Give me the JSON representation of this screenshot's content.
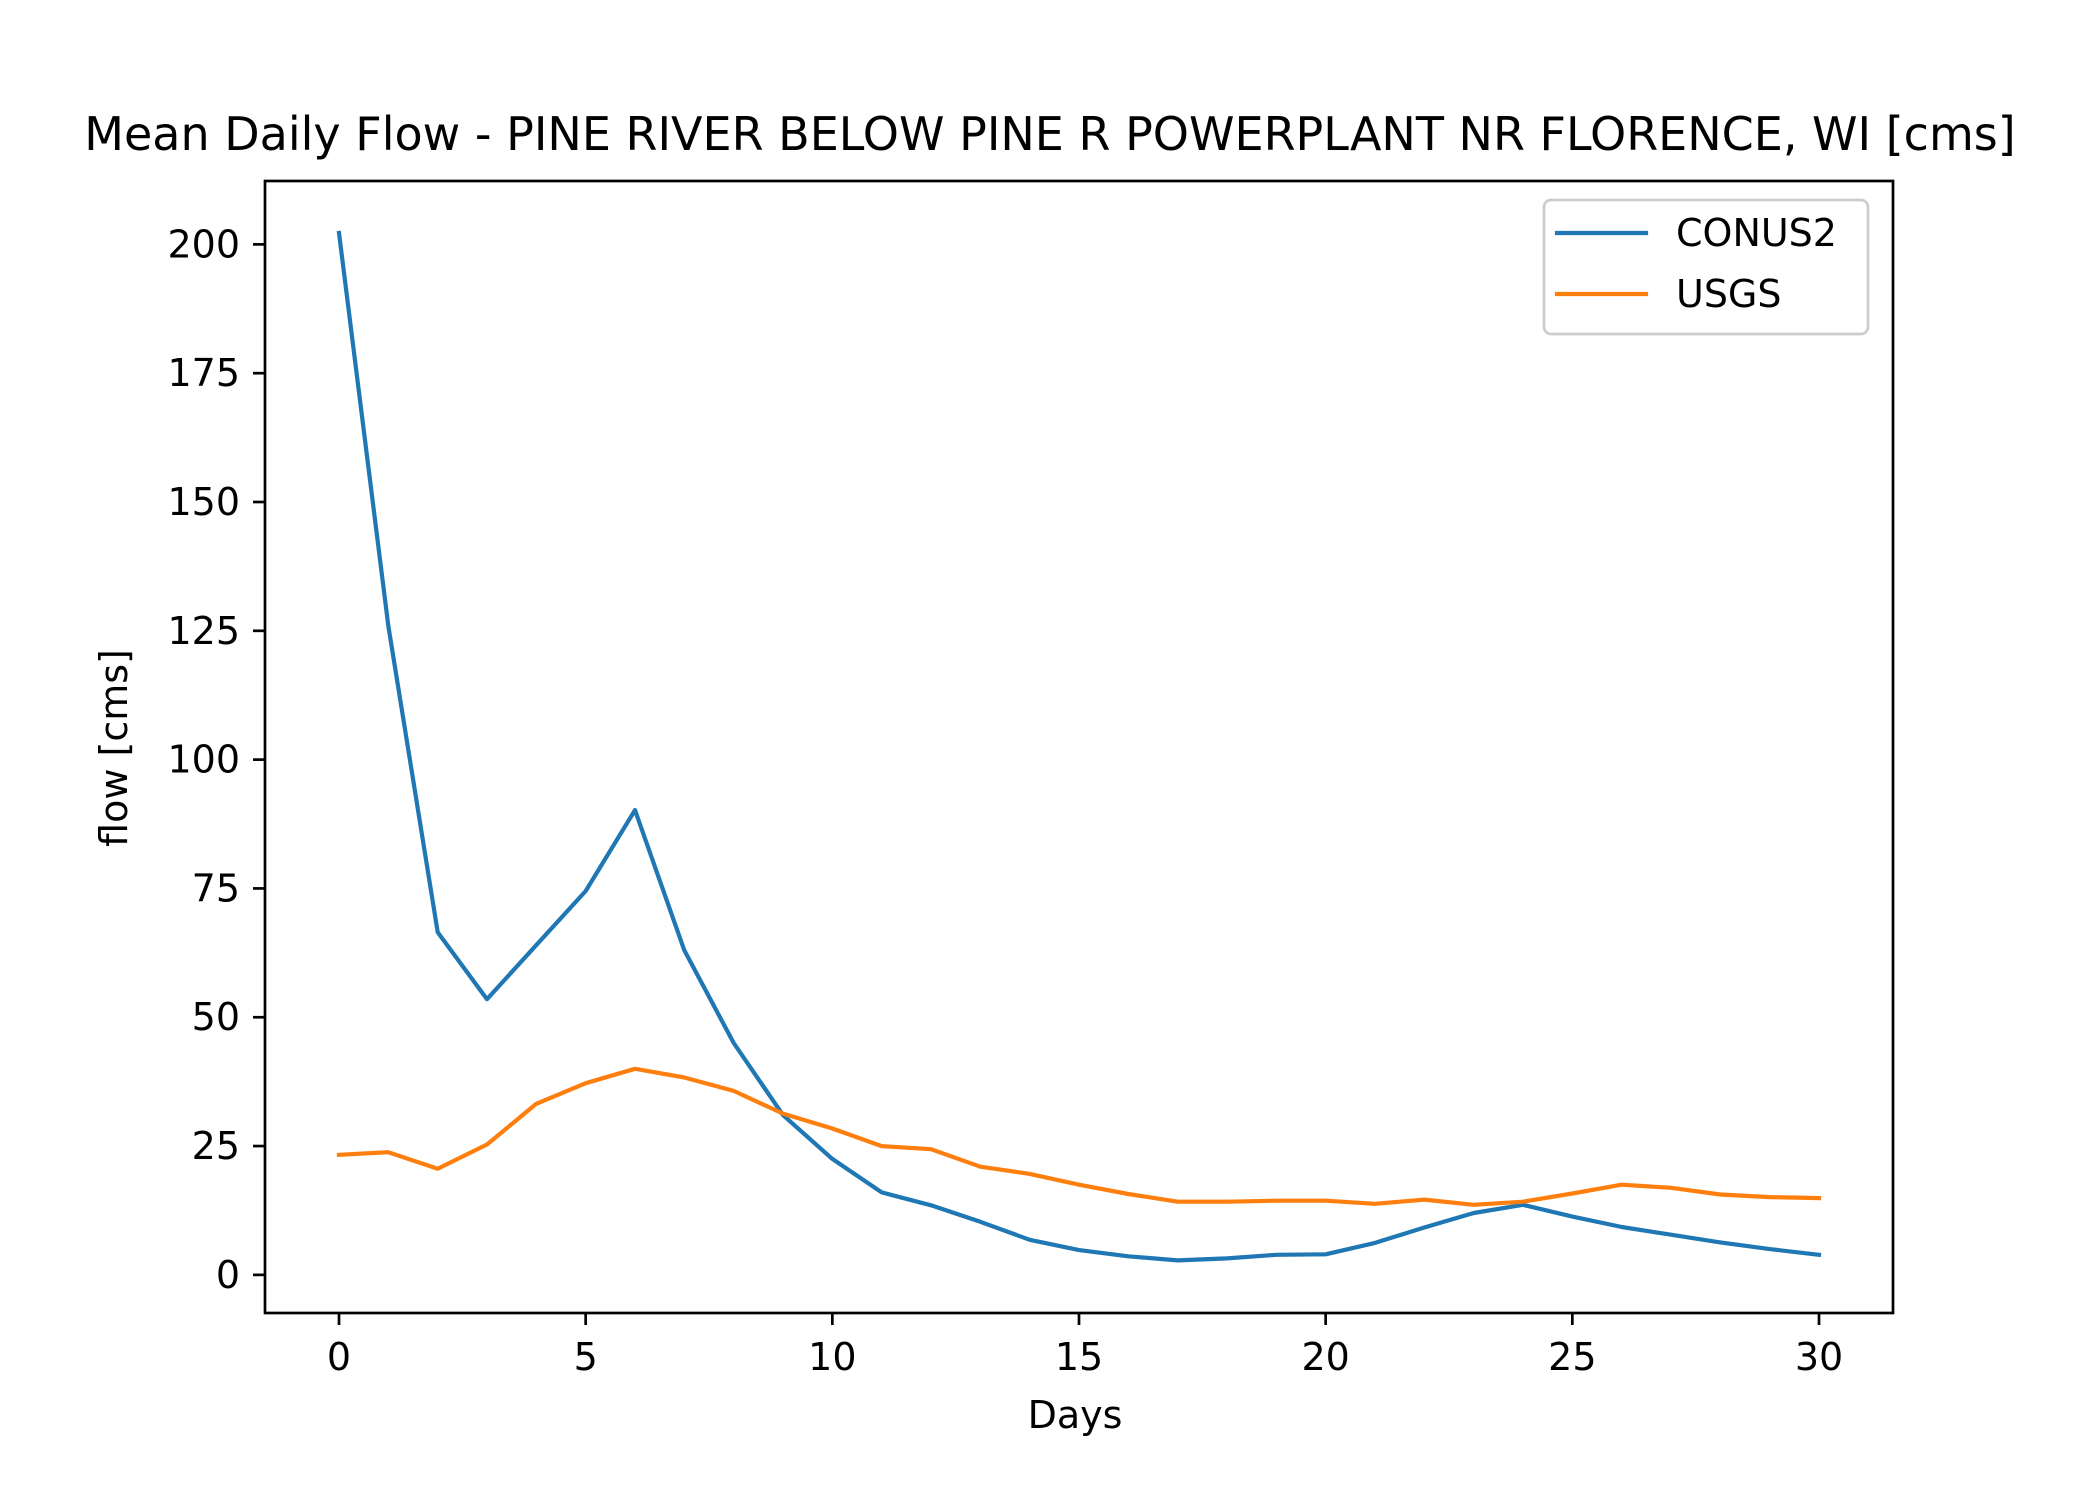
{
  "chart_data": {
    "type": "line",
    "title": "Mean Daily Flow - PINE RIVER BELOW PINE R POWERPLANT NR FLORENCE, WI [cms]",
    "xlabel": "Days",
    "ylabel": "flow [cms]",
    "xlim": [
      -1.5,
      31.5
    ],
    "ylim": [
      -7.4,
      212.3
    ],
    "x_ticks": [
      0,
      5,
      10,
      15,
      20,
      25,
      30
    ],
    "y_ticks": [
      0,
      25,
      50,
      75,
      100,
      125,
      150,
      175,
      200
    ],
    "x_tick_labels": [
      "0",
      "5",
      "10",
      "15",
      "20",
      "25",
      "30"
    ],
    "y_tick_labels": [
      "0",
      "25",
      "50",
      "75",
      "100",
      "125",
      "150",
      "175",
      "200"
    ],
    "grid": false,
    "legend_position": "top-right",
    "x": [
      0,
      1,
      2,
      3,
      4,
      5,
      6,
      7,
      8,
      9,
      10,
      11,
      12,
      13,
      14,
      15,
      16,
      17,
      18,
      19,
      20,
      21,
      22,
      23,
      24,
      25,
      26,
      27,
      28,
      29,
      30
    ],
    "series": [
      {
        "name": "CONUS2",
        "color": "#1f77b4",
        "values": [
          202.2,
          126.0,
          66.5,
          53.5,
          64.0,
          74.5,
          90.2,
          63.0,
          45.0,
          31.0,
          22.5,
          16.0,
          13.5,
          10.3,
          6.8,
          4.8,
          3.6,
          2.8,
          3.2,
          3.9,
          4.0,
          6.2,
          9.2,
          12.0,
          13.6,
          11.3,
          9.3,
          7.8,
          6.3,
          5.0,
          3.9
        ]
      },
      {
        "name": "USGS",
        "color": "#ff7f0e",
        "values": [
          23.3,
          23.8,
          20.6,
          25.3,
          33.2,
          37.2,
          40.0,
          38.3,
          35.7,
          31.3,
          28.4,
          25.0,
          24.4,
          21.0,
          19.6,
          17.5,
          15.7,
          14.2,
          14.2,
          14.4,
          14.4,
          13.8,
          14.6,
          13.6,
          14.2,
          15.8,
          17.5,
          16.9,
          15.6,
          15.1,
          14.9
        ]
      }
    ]
  }
}
